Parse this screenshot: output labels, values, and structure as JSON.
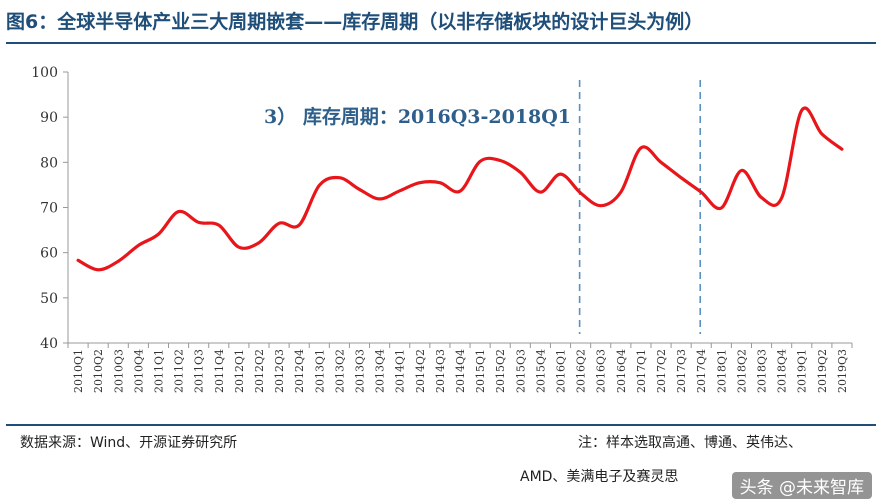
{
  "figure": {
    "title": "图6：全球半导体产业三大周期嵌套——库存周期（以非存储板块的设计巨头为例）"
  },
  "footer": {
    "source": "数据来源：Wind、开源证券研究所",
    "note_line1": "注：样本选取高通、博通、英伟达、",
    "note_line2": "AMD、美满电子及赛灵思",
    "watermark": "头条 @未来智库"
  },
  "colors": {
    "title": "#1f4e79",
    "series": "#e8161b",
    "annotation": "#2e5f8a",
    "divider": "#5b8fbf",
    "axis": "#999999"
  },
  "chart_data": {
    "type": "line",
    "title": "",
    "xlabel": "",
    "ylabel": "",
    "ylim": [
      40,
      100
    ],
    "yticks": [
      40,
      50,
      60,
      70,
      80,
      90,
      100
    ],
    "grid": false,
    "legend": "none",
    "categories": [
      "2010Q1",
      "2010Q2",
      "2010Q3",
      "2010Q4",
      "2011Q1",
      "2011Q2",
      "2011Q3",
      "2011Q4",
      "2012Q1",
      "2012Q2",
      "2012Q3",
      "2012Q4",
      "2013Q1",
      "2013Q2",
      "2013Q3",
      "2013Q4",
      "2014Q1",
      "2014Q2",
      "2014Q3",
      "2014Q4",
      "2015Q1",
      "2015Q2",
      "2015Q3",
      "2015Q4",
      "2016Q1",
      "2016Q2",
      "2016Q3",
      "2016Q4",
      "2017Q1",
      "2017Q2",
      "2017Q3",
      "2017Q4",
      "2018Q1",
      "2018Q2",
      "2018Q3",
      "2018Q4",
      "2019Q1",
      "2019Q2",
      "2019Q3"
    ],
    "series": [
      {
        "values": [
          58.3,
          56.2,
          58.1,
          61.6,
          64.1,
          69.1,
          66.7,
          66.1,
          61.2,
          62.2,
          66.5,
          66.1,
          74.9,
          76.6,
          74.0,
          71.9,
          73.7,
          75.5,
          75.5,
          73.6,
          80.2,
          80.4,
          77.8,
          73.4,
          77.4,
          73.2,
          70.4,
          73.4,
          83.2,
          80.0,
          76.6,
          73.4,
          69.9,
          78.2,
          72.2,
          72.1,
          91.5,
          86.3,
          82.9
        ]
      }
    ],
    "annotations": [
      {
        "text": "3） 库存周期：2016Q3-2018Q1"
      }
    ],
    "vlines": [
      "2016Q2",
      "2017Q4"
    ]
  }
}
